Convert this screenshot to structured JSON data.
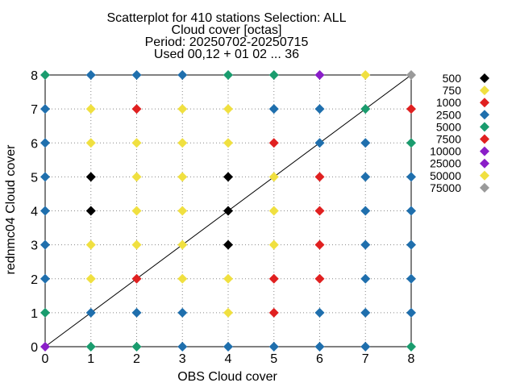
{
  "chart_data": {
    "type": "scatter",
    "title_lines": [
      "Scatterplot for  410 stations Selection: ALL",
      "Cloud cover [octas]",
      "Period: 20250702-20250715",
      "Used 00,12 + 01 02 ... 36"
    ],
    "xlabel": "OBS Cloud cover",
    "ylabel": "rednmc04 Cloud cover",
    "xlim": [
      0,
      8
    ],
    "ylim": [
      0,
      8
    ],
    "xticks": [
      "0",
      "1",
      "2",
      "3",
      "4",
      "5",
      "6",
      "7",
      "8"
    ],
    "yticks": [
      "0",
      "1",
      "2",
      "3",
      "4",
      "5",
      "6",
      "7",
      "8"
    ],
    "grid": true,
    "diagonal": true,
    "legend_position": "right",
    "legend": [
      {
        "label": "500",
        "color": "#000000"
      },
      {
        "label": "750",
        "color": "#f0e040"
      },
      {
        "label": "1000",
        "color": "#e02020"
      },
      {
        "label": "2500",
        "color": "#1f6fad"
      },
      {
        "label": "5000",
        "color": "#1a9c6e"
      },
      {
        "label": "7500",
        "color": "#e02020"
      },
      {
        "label": "10000",
        "color": "#8a1ec8"
      },
      {
        "label": "25000",
        "color": "#8a1ec8"
      },
      {
        "label": "50000",
        "color": "#f0e040"
      },
      {
        "label": "75000",
        "color": "#9a9a9a"
      }
    ],
    "points": [
      {
        "x": 0,
        "y": 8,
        "color": "#1a9c6e"
      },
      {
        "x": 1,
        "y": 8,
        "color": "#1f6fad"
      },
      {
        "x": 2,
        "y": 8,
        "color": "#1f6fad"
      },
      {
        "x": 3,
        "y": 8,
        "color": "#1f6fad"
      },
      {
        "x": 4,
        "y": 8,
        "color": "#1a9c6e"
      },
      {
        "x": 5,
        "y": 8,
        "color": "#1a9c6e"
      },
      {
        "x": 6,
        "y": 8,
        "color": "#8a1ec8"
      },
      {
        "x": 7,
        "y": 8,
        "color": "#f0e040"
      },
      {
        "x": 8,
        "y": 8,
        "color": "#9a9a9a"
      },
      {
        "x": 0,
        "y": 7,
        "color": "#1f6fad"
      },
      {
        "x": 1,
        "y": 7,
        "color": "#f0e040"
      },
      {
        "x": 2,
        "y": 7,
        "color": "#e02020"
      },
      {
        "x": 3,
        "y": 7,
        "color": "#f0e040"
      },
      {
        "x": 4,
        "y": 7,
        "color": "#f0e040"
      },
      {
        "x": 5,
        "y": 7,
        "color": "#1f6fad"
      },
      {
        "x": 6,
        "y": 7,
        "color": "#1f6fad"
      },
      {
        "x": 7,
        "y": 7,
        "color": "#1a9c6e"
      },
      {
        "x": 8,
        "y": 7,
        "color": "#e02020"
      },
      {
        "x": 0,
        "y": 6,
        "color": "#1f6fad"
      },
      {
        "x": 1,
        "y": 6,
        "color": "#f0e040"
      },
      {
        "x": 2,
        "y": 6,
        "color": "#f0e040"
      },
      {
        "x": 3,
        "y": 6,
        "color": "#f0e040"
      },
      {
        "x": 4,
        "y": 6,
        "color": "#f0e040"
      },
      {
        "x": 5,
        "y": 6,
        "color": "#e02020"
      },
      {
        "x": 6,
        "y": 6,
        "color": "#1f6fad"
      },
      {
        "x": 7,
        "y": 6,
        "color": "#1f6fad"
      },
      {
        "x": 8,
        "y": 6,
        "color": "#1a9c6e"
      },
      {
        "x": 0,
        "y": 5,
        "color": "#1f6fad"
      },
      {
        "x": 1,
        "y": 5,
        "color": "#000000"
      },
      {
        "x": 2,
        "y": 5,
        "color": "#f0e040"
      },
      {
        "x": 3,
        "y": 5,
        "color": "#f0e040"
      },
      {
        "x": 4,
        "y": 5,
        "color": "#000000"
      },
      {
        "x": 5,
        "y": 5,
        "color": "#f0e040"
      },
      {
        "x": 6,
        "y": 5,
        "color": "#e02020"
      },
      {
        "x": 7,
        "y": 5,
        "color": "#1f6fad"
      },
      {
        "x": 8,
        "y": 5,
        "color": "#1f6fad"
      },
      {
        "x": 0,
        "y": 4,
        "color": "#1f6fad"
      },
      {
        "x": 1,
        "y": 4,
        "color": "#000000"
      },
      {
        "x": 2,
        "y": 4,
        "color": "#f0e040"
      },
      {
        "x": 3,
        "y": 4,
        "color": "#f0e040"
      },
      {
        "x": 4,
        "y": 4,
        "color": "#000000"
      },
      {
        "x": 5,
        "y": 4,
        "color": "#f0e040"
      },
      {
        "x": 6,
        "y": 4,
        "color": "#e02020"
      },
      {
        "x": 7,
        "y": 4,
        "color": "#1f6fad"
      },
      {
        "x": 8,
        "y": 4,
        "color": "#1f6fad"
      },
      {
        "x": 0,
        "y": 3,
        "color": "#1f6fad"
      },
      {
        "x": 1,
        "y": 3,
        "color": "#f0e040"
      },
      {
        "x": 2,
        "y": 3,
        "color": "#f0e040"
      },
      {
        "x": 3,
        "y": 3,
        "color": "#f0e040"
      },
      {
        "x": 4,
        "y": 3,
        "color": "#000000"
      },
      {
        "x": 5,
        "y": 3,
        "color": "#f0e040"
      },
      {
        "x": 6,
        "y": 3,
        "color": "#e02020"
      },
      {
        "x": 7,
        "y": 3,
        "color": "#1f6fad"
      },
      {
        "x": 8,
        "y": 3,
        "color": "#1f6fad"
      },
      {
        "x": 0,
        "y": 2,
        "color": "#1f6fad"
      },
      {
        "x": 1,
        "y": 2,
        "color": "#f0e040"
      },
      {
        "x": 2,
        "y": 2,
        "color": "#e02020"
      },
      {
        "x": 3,
        "y": 2,
        "color": "#f0e040"
      },
      {
        "x": 4,
        "y": 2,
        "color": "#f0e040"
      },
      {
        "x": 5,
        "y": 2,
        "color": "#e02020"
      },
      {
        "x": 6,
        "y": 2,
        "color": "#e02020"
      },
      {
        "x": 7,
        "y": 2,
        "color": "#1f6fad"
      },
      {
        "x": 8,
        "y": 2,
        "color": "#1f6fad"
      },
      {
        "x": 0,
        "y": 1,
        "color": "#1a9c6e"
      },
      {
        "x": 1,
        "y": 1,
        "color": "#1f6fad"
      },
      {
        "x": 2,
        "y": 1,
        "color": "#1f6fad"
      },
      {
        "x": 3,
        "y": 1,
        "color": "#1f6fad"
      },
      {
        "x": 4,
        "y": 1,
        "color": "#f0e040"
      },
      {
        "x": 5,
        "y": 1,
        "color": "#e02020"
      },
      {
        "x": 6,
        "y": 1,
        "color": "#1f6fad"
      },
      {
        "x": 7,
        "y": 1,
        "color": "#1f6fad"
      },
      {
        "x": 8,
        "y": 1,
        "color": "#1f6fad"
      },
      {
        "x": 0,
        "y": 0,
        "color": "#8a1ec8"
      },
      {
        "x": 1,
        "y": 0,
        "color": "#1a9c6e"
      },
      {
        "x": 2,
        "y": 0,
        "color": "#1a9c6e"
      },
      {
        "x": 3,
        "y": 0,
        "color": "#1f6fad"
      },
      {
        "x": 4,
        "y": 0,
        "color": "#1f6fad"
      },
      {
        "x": 5,
        "y": 0,
        "color": "#1f6fad"
      },
      {
        "x": 6,
        "y": 0,
        "color": "#1f6fad"
      },
      {
        "x": 7,
        "y": 0,
        "color": "#1f6fad"
      },
      {
        "x": 8,
        "y": 0,
        "color": "#1a9c6e"
      }
    ]
  }
}
